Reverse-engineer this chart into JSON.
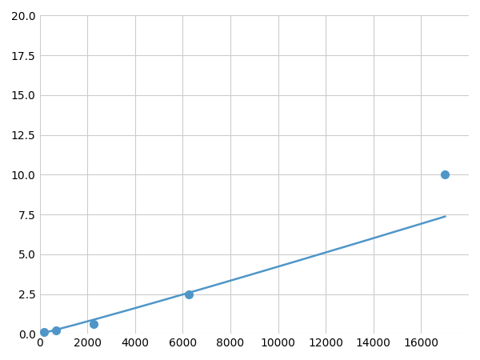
{
  "x_points": [
    200,
    700,
    2250,
    6250,
    17000
  ],
  "y_points": [
    0.1,
    0.2,
    0.6,
    2.5,
    10.0
  ],
  "line_color": "#4f96c8",
  "marker_color": "#4f96c8",
  "marker_size": 7,
  "line_width": 1.8,
  "xlim": [
    0,
    18000
  ],
  "ylim": [
    0,
    20
  ],
  "xticks": [
    0,
    2000,
    4000,
    6000,
    8000,
    10000,
    12000,
    14000,
    16000
  ],
  "yticks": [
    0.0,
    2.5,
    5.0,
    7.5,
    10.0,
    12.5,
    15.0,
    17.5,
    20.0
  ],
  "grid_color": "#cccccc",
  "background_color": "#ffffff",
  "tick_fontsize": 10
}
